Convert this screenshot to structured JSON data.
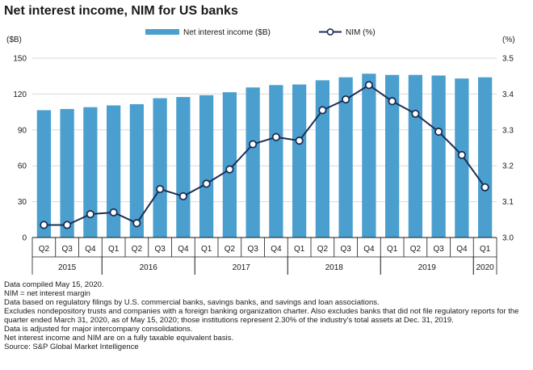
{
  "title": "Net interest income, NIM for US banks",
  "chart_data": {
    "type": "bar+line",
    "title": "Net interest income, NIM for US banks",
    "left_axis_label": "($B)",
    "right_axis_label": "(%)",
    "left_ylim": [
      0,
      150
    ],
    "left_ticks": [
      "0",
      "30",
      "60",
      "90",
      "120",
      "150"
    ],
    "right_ylim": [
      3.0,
      3.5
    ],
    "right_ticks": [
      "3.0",
      "3.1",
      "3.2",
      "3.3",
      "3.4",
      "3.5"
    ],
    "grid": true,
    "legend_position": "top",
    "categories": [
      "Q2",
      "Q3",
      "Q4",
      "Q1",
      "Q2",
      "Q3",
      "Q4",
      "Q1",
      "Q2",
      "Q3",
      "Q4",
      "Q1",
      "Q2",
      "Q3",
      "Q4",
      "Q1",
      "Q2",
      "Q3",
      "Q4",
      "Q1"
    ],
    "years": [
      {
        "label": "2015",
        "start": 0,
        "end": 2
      },
      {
        "label": "2016",
        "start": 3,
        "end": 6
      },
      {
        "label": "2017",
        "start": 7,
        "end": 10
      },
      {
        "label": "2018",
        "start": 11,
        "end": 14
      },
      {
        "label": "2019",
        "start": 15,
        "end": 18
      },
      {
        "label": "2020",
        "start": 19,
        "end": 19
      }
    ],
    "series": [
      {
        "name": "Net interest income ($B)",
        "type": "bar",
        "axis": "left",
        "color": "#4a9fcf",
        "values": [
          106.5,
          107.5,
          109,
          110.5,
          111.5,
          116.5,
          117.5,
          119,
          121.5,
          125.5,
          127.5,
          128,
          131.5,
          134,
          137,
          136,
          136,
          135.5,
          133,
          134
        ]
      },
      {
        "name": "NIM (%)",
        "type": "line",
        "axis": "right",
        "color": "#1c2f54",
        "values": [
          3.035,
          3.035,
          3.065,
          3.07,
          3.04,
          3.135,
          3.115,
          3.15,
          3.19,
          3.26,
          3.28,
          3.27,
          3.355,
          3.385,
          3.425,
          3.38,
          3.345,
          3.295,
          3.23,
          3.14
        ]
      }
    ]
  },
  "notes": [
    "Data compiled May 15, 2020.",
    "NIM = net interest margin",
    "Data based on regulatory filings by U.S. commercial banks, savings banks, and savings and loan associations.",
    "Excludes nondepository trusts and companies with a foreign banking organization charter. Also excludes banks that did not file regulatory reports for the quarter ended March 31, 2020, as of May 15, 2020; those institutions represent 2.30% of the industry's total assets at Dec. 31, 2019.",
    "Data is adjusted for major intercompany consolidations.",
    "Net interest income and NIM are on a fully taxable equivalent basis.",
    "Source: S&P Global Market Intelligence"
  ]
}
